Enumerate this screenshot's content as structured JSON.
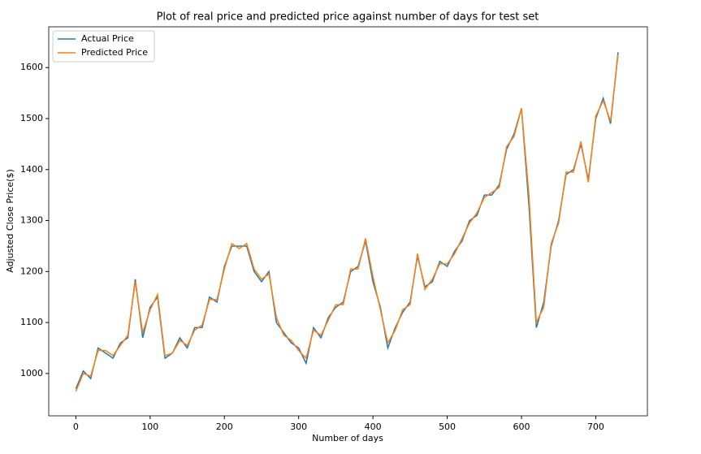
{
  "chart_data": {
    "type": "line",
    "title": "Plot of real price and predicted price against number of days for test set",
    "xlabel": "Number of days",
    "ylabel": "Adjusted Close Price($)",
    "x": [
      0,
      10,
      20,
      30,
      40,
      50,
      60,
      70,
      80,
      90,
      100,
      110,
      120,
      130,
      140,
      150,
      160,
      170,
      180,
      190,
      200,
      210,
      220,
      230,
      240,
      250,
      260,
      270,
      280,
      290,
      300,
      310,
      320,
      330,
      340,
      350,
      360,
      370,
      380,
      390,
      400,
      410,
      420,
      430,
      440,
      450,
      460,
      470,
      480,
      490,
      500,
      510,
      520,
      530,
      540,
      550,
      560,
      570,
      580,
      590,
      600,
      610,
      620,
      630,
      640,
      650,
      660,
      670,
      680,
      690,
      700,
      710,
      720,
      730
    ],
    "series": [
      {
        "name": "Actual Price",
        "color": "#1f77b4",
        "values": [
          970,
          1005,
          990,
          1050,
          1040,
          1030,
          1060,
          1070,
          1185,
          1070,
          1130,
          1150,
          1030,
          1040,
          1070,
          1050,
          1090,
          1090,
          1150,
          1140,
          1210,
          1250,
          1250,
          1250,
          1200,
          1180,
          1200,
          1100,
          1080,
          1060,
          1050,
          1020,
          1090,
          1070,
          1110,
          1130,
          1140,
          1200,
          1210,
          1260,
          1180,
          1130,
          1050,
          1090,
          1120,
          1140,
          1230,
          1170,
          1180,
          1220,
          1210,
          1240,
          1260,
          1300,
          1310,
          1350,
          1350,
          1370,
          1440,
          1470,
          1520,
          1330,
          1090,
          1140,
          1250,
          1300,
          1390,
          1400,
          1450,
          1380,
          1500,
          1540,
          1490,
          1630
        ]
      },
      {
        "name": "Predicted Price",
        "color": "#ff7f0e",
        "values": [
          965,
          1000,
          995,
          1045,
          1045,
          1035,
          1055,
          1075,
          1180,
          1080,
          1125,
          1155,
          1035,
          1040,
          1065,
          1055,
          1085,
          1095,
          1145,
          1145,
          1205,
          1255,
          1245,
          1255,
          1205,
          1185,
          1195,
          1110,
          1075,
          1065,
          1045,
          1030,
          1085,
          1075,
          1105,
          1135,
          1135,
          1205,
          1205,
          1265,
          1190,
          1125,
          1060,
          1085,
          1125,
          1135,
          1235,
          1165,
          1185,
          1215,
          1215,
          1235,
          1265,
          1295,
          1315,
          1345,
          1355,
          1365,
          1445,
          1465,
          1520,
          1350,
          1100,
          1130,
          1255,
          1295,
          1395,
          1395,
          1455,
          1375,
          1505,
          1535,
          1495,
          1625
        ]
      }
    ],
    "xlim": [
      -36.5,
      769.5
    ],
    "ylim": [
      917,
      1680
    ],
    "xticks": [
      0,
      100,
      200,
      300,
      400,
      500,
      600,
      700
    ],
    "yticks": [
      1000,
      1100,
      1200,
      1300,
      1400,
      1500,
      1600
    ],
    "legend": "upper left"
  }
}
